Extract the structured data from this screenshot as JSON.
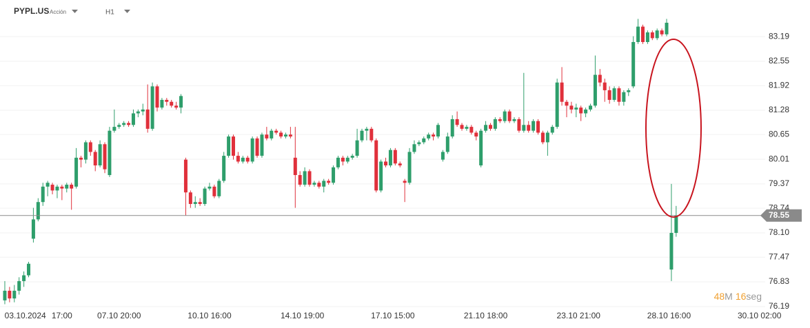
{
  "header": {
    "symbol": "PYPL.US",
    "asset_type": "Acción",
    "timeframe": "H1"
  },
  "countdown": {
    "minutes": 48,
    "minutes_unit": "M",
    "seconds": 16,
    "seconds_unit": "seg"
  },
  "chart_data": {
    "type": "candlestick",
    "up_color": "#2e9e6b",
    "down_color": "#e0303b",
    "grid": true,
    "ylim": [
      75.83,
      84.14
    ],
    "xlim": [
      -1.01,
      159.7
    ],
    "yticks": [
      83.19,
      82.55,
      81.92,
      81.28,
      80.65,
      80.01,
      79.37,
      78.74,
      {
        "value": 78.1,
        "label": "78.10"
      },
      77.47,
      76.83,
      76.19
    ],
    "xticks": [
      {
        "value": 4.3,
        "label": "03.10.2024"
      },
      {
        "value": 12,
        "label": "17:00"
      },
      {
        "value": 24,
        "label": "07.10 20:00"
      },
      {
        "value": 43,
        "label": "10.10 16:00"
      },
      {
        "value": 62.5,
        "label": "14.10 19:00"
      },
      {
        "value": 81.5,
        "label": "17.10 15:00"
      },
      {
        "value": 101,
        "label": "21.10 18:00"
      },
      {
        "value": 120.5,
        "label": "23.10 21:00"
      },
      {
        "value": 139.5,
        "label": "28.10 16:00"
      },
      {
        "value": 158.5,
        "label": "30.10 02:00"
      }
    ],
    "last_price": 78.55,
    "ohlc": [
      [
        76.35,
        76.85,
        76.25,
        76.6
      ],
      [
        76.6,
        76.7,
        76.3,
        76.4
      ],
      [
        76.4,
        76.75,
        76.3,
        76.6
      ],
      [
        76.6,
        76.95,
        76.5,
        76.85
      ],
      [
        76.85,
        77.1,
        76.7,
        77.0
      ],
      [
        77.0,
        77.35,
        76.95,
        77.3
      ],
      [
        77.95,
        78.75,
        77.85,
        78.45
      ],
      [
        78.45,
        79.0,
        78.4,
        78.9
      ],
      [
        78.9,
        79.4,
        78.8,
        79.3
      ],
      [
        79.3,
        79.45,
        79.05,
        79.4
      ],
      [
        79.35,
        79.4,
        79.1,
        79.2
      ],
      [
        79.2,
        79.35,
        79.0,
        79.3
      ],
      [
        79.3,
        79.35,
        78.95,
        79.25
      ],
      [
        79.25,
        79.4,
        79.15,
        79.35
      ],
      [
        79.35,
        79.4,
        78.7,
        79.25
      ],
      [
        79.3,
        80.3,
        79.25,
        80.05
      ],
      [
        80.05,
        80.1,
        79.8,
        80.0
      ],
      [
        80.0,
        80.5,
        79.9,
        80.45
      ],
      [
        80.45,
        80.5,
        80.1,
        80.2
      ],
      [
        80.2,
        80.25,
        79.7,
        79.85
      ],
      [
        79.85,
        80.5,
        79.8,
        80.4
      ],
      [
        80.4,
        80.45,
        79.65,
        79.75
      ],
      [
        79.6,
        80.85,
        79.55,
        80.75
      ],
      [
        80.75,
        81.3,
        80.7,
        80.85
      ],
      [
        80.85,
        80.95,
        80.8,
        80.9
      ],
      [
        80.9,
        81.0,
        80.85,
        80.95
      ],
      [
        80.95,
        81.0,
        80.85,
        80.9
      ],
      [
        80.9,
        81.3,
        80.85,
        81.2
      ],
      [
        81.2,
        81.3,
        81.1,
        81.25
      ],
      [
        81.25,
        81.45,
        81.15,
        81.3
      ],
      [
        81.3,
        81.95,
        80.7,
        80.8
      ],
      [
        80.8,
        82.0,
        80.75,
        81.9
      ],
      [
        81.9,
        81.95,
        81.25,
        81.35
      ],
      [
        81.35,
        81.6,
        81.3,
        81.55
      ],
      [
        81.55,
        81.6,
        81.4,
        81.5
      ],
      [
        81.5,
        81.55,
        81.35,
        81.4
      ],
      [
        81.4,
        81.5,
        81.3,
        81.35
      ],
      [
        81.35,
        81.7,
        81.2,
        81.65
      ],
      [
        80.0,
        80.05,
        78.55,
        79.15
      ],
      [
        79.15,
        79.2,
        78.75,
        78.85
      ],
      [
        78.85,
        79.05,
        78.75,
        78.9
      ],
      [
        78.9,
        79.0,
        78.8,
        78.85
      ],
      [
        78.85,
        79.3,
        78.8,
        79.25
      ],
      [
        79.25,
        79.4,
        79.2,
        79.3
      ],
      [
        79.3,
        79.35,
        79.0,
        79.05
      ],
      [
        79.05,
        79.5,
        79.0,
        79.45
      ],
      [
        79.45,
        80.2,
        79.4,
        80.1
      ],
      [
        80.1,
        80.65,
        80.05,
        80.6
      ],
      [
        80.6,
        80.65,
        80.0,
        80.1
      ],
      [
        80.1,
        80.2,
        79.9,
        79.95
      ],
      [
        79.95,
        80.1,
        79.9,
        80.05
      ],
      [
        80.05,
        80.1,
        79.9,
        79.95
      ],
      [
        79.95,
        80.6,
        79.9,
        80.55
      ],
      [
        80.55,
        80.6,
        80.05,
        80.1
      ],
      [
        80.1,
        80.7,
        80.05,
        80.65
      ],
      [
        80.65,
        80.85,
        80.5,
        80.55
      ],
      [
        80.55,
        80.8,
        80.5,
        80.75
      ],
      [
        80.75,
        80.8,
        80.65,
        80.7
      ],
      [
        80.7,
        80.75,
        80.55,
        80.6
      ],
      [
        80.6,
        80.7,
        80.55,
        80.65
      ],
      [
        80.65,
        80.85,
        80.55,
        80.6
      ],
      [
        80.05,
        80.85,
        78.75,
        79.6
      ],
      [
        79.6,
        79.7,
        79.3,
        79.35
      ],
      [
        79.35,
        79.8,
        79.3,
        79.7
      ],
      [
        79.7,
        79.75,
        79.3,
        79.35
      ],
      [
        79.35,
        79.45,
        79.3,
        79.4
      ],
      [
        79.4,
        79.45,
        79.25,
        79.3
      ],
      [
        79.3,
        79.5,
        79.15,
        79.45
      ],
      [
        79.45,
        79.5,
        79.35,
        79.4
      ],
      [
        79.4,
        79.85,
        79.35,
        79.8
      ],
      [
        79.8,
        80.1,
        79.75,
        80.05
      ],
      [
        80.05,
        80.1,
        79.85,
        79.95
      ],
      [
        79.95,
        80.1,
        79.9,
        80.05
      ],
      [
        80.05,
        80.15,
        80.0,
        80.1
      ],
      [
        80.1,
        80.8,
        80.05,
        80.5
      ],
      [
        80.5,
        80.8,
        80.45,
        80.75
      ],
      [
        80.75,
        80.85,
        80.5,
        80.8
      ],
      [
        80.8,
        80.85,
        80.45,
        80.5
      ],
      [
        80.5,
        80.55,
        79.15,
        79.2
      ],
      [
        79.2,
        80.0,
        79.15,
        79.95
      ],
      [
        79.95,
        80.05,
        79.8,
        79.85
      ],
      [
        79.85,
        80.3,
        79.8,
        80.25
      ],
      [
        80.25,
        80.3,
        79.85,
        79.9
      ],
      [
        79.9,
        79.95,
        79.8,
        79.85
      ],
      [
        79.45,
        79.5,
        78.9,
        79.4
      ],
      [
        79.4,
        80.3,
        79.35,
        80.2
      ],
      [
        80.2,
        80.5,
        80.15,
        80.4
      ],
      [
        80.4,
        80.5,
        80.35,
        80.45
      ],
      [
        80.45,
        80.6,
        80.4,
        80.55
      ],
      [
        80.55,
        80.7,
        80.5,
        80.65
      ],
      [
        80.65,
        80.7,
        80.5,
        80.6
      ],
      [
        80.6,
        80.95,
        80.55,
        80.9
      ],
      [
        80.0,
        80.25,
        79.95,
        80.2
      ],
      [
        80.2,
        80.7,
        80.15,
        80.6
      ],
      [
        80.6,
        81.15,
        80.55,
        81.05
      ],
      [
        81.05,
        81.25,
        80.85,
        80.9
      ],
      [
        80.9,
        80.95,
        80.75,
        80.8
      ],
      [
        80.8,
        80.9,
        80.75,
        80.85
      ],
      [
        80.85,
        80.9,
        80.65,
        80.7
      ],
      [
        80.7,
        80.75,
        80.5,
        80.6
      ],
      [
        79.85,
        80.8,
        79.8,
        80.75
      ],
      [
        80.75,
        81.0,
        80.7,
        80.9
      ],
      [
        80.9,
        80.95,
        80.75,
        80.8
      ],
      [
        80.8,
        81.1,
        80.75,
        81.05
      ],
      [
        81.05,
        81.1,
        80.95,
        81.0
      ],
      [
        81.0,
        81.3,
        80.95,
        81.25
      ],
      [
        81.25,
        81.3,
        80.95,
        81.0
      ],
      [
        81.0,
        81.1,
        80.95,
        81.05
      ],
      [
        81.05,
        81.1,
        80.7,
        80.75
      ],
      [
        80.75,
        82.25,
        80.7,
        80.9
      ],
      [
        80.9,
        81.0,
        80.7,
        80.75
      ],
      [
        80.75,
        81.05,
        80.7,
        81.0
      ],
      [
        81.0,
        81.05,
        80.65,
        80.7
      ],
      [
        80.7,
        80.75,
        80.4,
        80.45
      ],
      [
        80.45,
        80.75,
        80.1,
        80.7
      ],
      [
        80.7,
        80.9,
        80.65,
        80.85
      ],
      [
        80.85,
        82.1,
        80.8,
        82.0
      ],
      [
        82.0,
        82.4,
        81.4,
        81.5
      ],
      [
        81.5,
        81.55,
        81.1,
        81.4
      ],
      [
        81.4,
        81.5,
        81.2,
        81.3
      ],
      [
        81.3,
        81.45,
        81.1,
        81.35
      ],
      [
        81.35,
        81.4,
        81.0,
        81.2
      ],
      [
        81.2,
        81.35,
        81.1,
        81.3
      ],
      [
        81.3,
        81.45,
        81.25,
        81.4
      ],
      [
        81.4,
        82.7,
        81.35,
        82.2
      ],
      [
        82.2,
        82.35,
        81.9,
        82.0
      ],
      [
        82.0,
        82.1,
        81.5,
        81.8
      ],
      [
        81.8,
        81.9,
        81.45,
        81.55
      ],
      [
        81.55,
        81.9,
        81.5,
        81.85
      ],
      [
        81.85,
        81.9,
        81.4,
        81.5
      ],
      [
        81.5,
        81.8,
        81.4,
        81.75
      ],
      [
        81.75,
        81.85,
        81.65,
        81.8
      ],
      [
        81.9,
        83.2,
        81.85,
        83.05
      ],
      [
        83.05,
        83.65,
        83.0,
        83.45
      ],
      [
        83.45,
        83.5,
        83.0,
        83.05
      ],
      [
        83.05,
        83.35,
        83.0,
        83.3
      ],
      [
        83.3,
        83.35,
        83.1,
        83.15
      ],
      [
        83.15,
        83.4,
        83.1,
        83.35
      ],
      [
        83.35,
        83.4,
        83.2,
        83.25
      ],
      [
        83.25,
        83.65,
        83.2,
        83.55
      ],
      [
        77.15,
        79.37,
        76.85,
        78.1
      ],
      [
        78.1,
        78.8,
        78.0,
        78.55
      ]
    ]
  }
}
